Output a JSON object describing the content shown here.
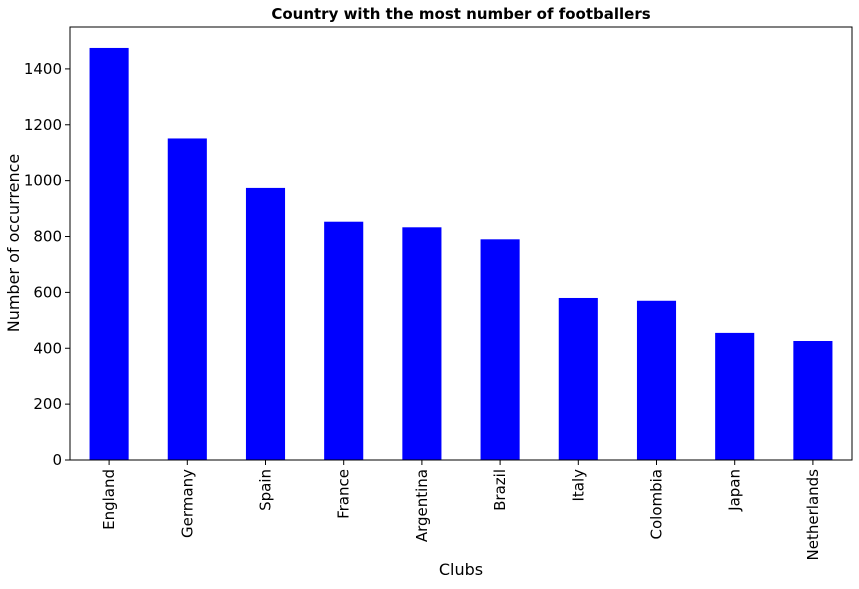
{
  "chart_data": {
    "type": "bar",
    "title": "Country with the most number of footballers",
    "xlabel": "Clubs",
    "ylabel": "Number of occurrence",
    "categories": [
      "England",
      "Germany",
      "Spain",
      "France",
      "Argentina",
      "Brazil",
      "Italy",
      "Colombia",
      "Japan",
      "Netherlands"
    ],
    "values": [
      1475,
      1151,
      974,
      853,
      833,
      790,
      580,
      570,
      455,
      426
    ],
    "ylim": [
      0,
      1550
    ],
    "yticks": [
      0,
      200,
      400,
      600,
      800,
      1000,
      1200,
      1400
    ],
    "grid": false,
    "legend": "none",
    "colors": {
      "bar": "#0000ff",
      "axis": "#000000",
      "background": "#ffffff"
    }
  }
}
